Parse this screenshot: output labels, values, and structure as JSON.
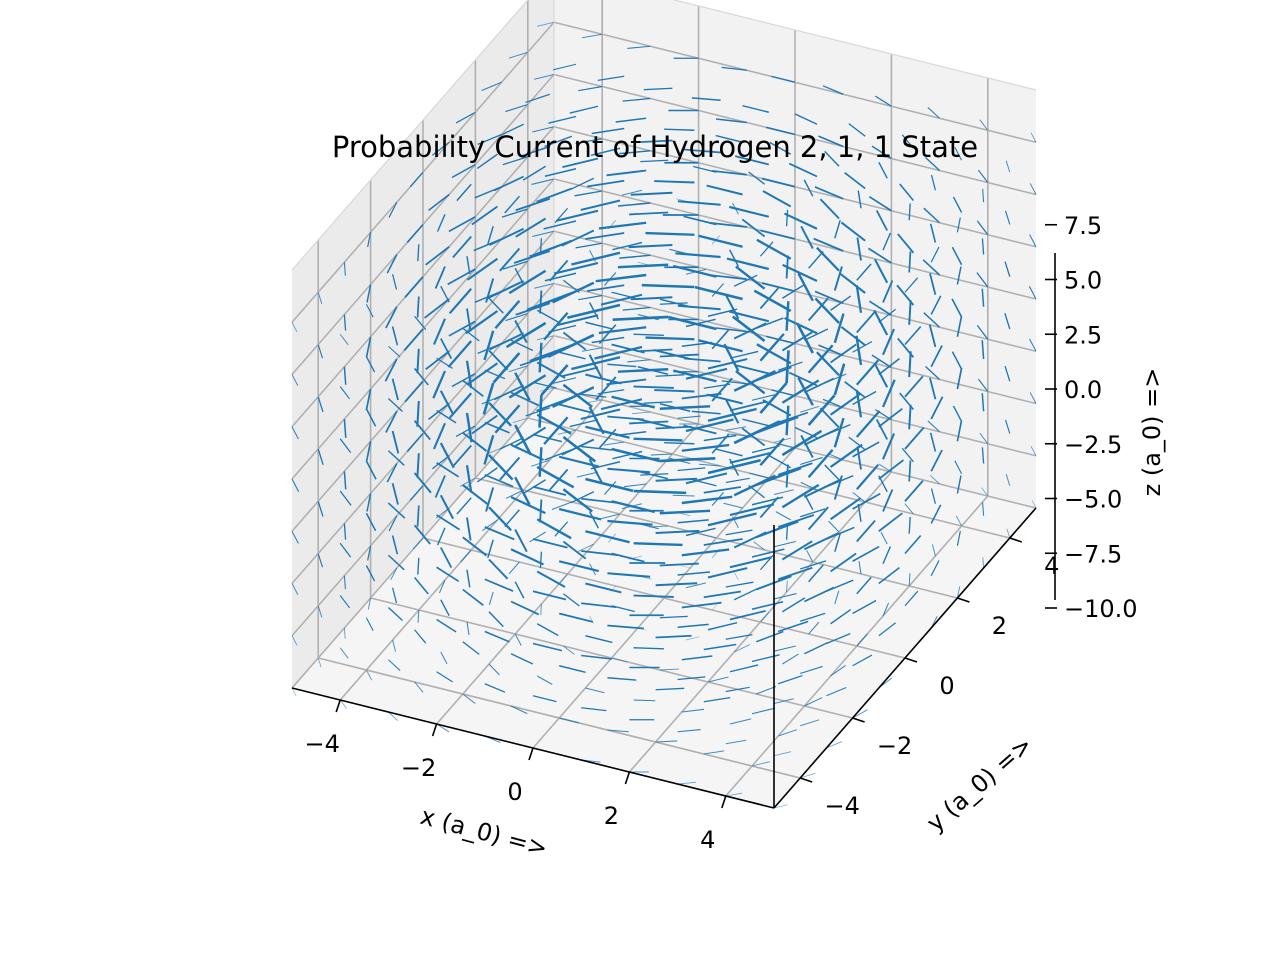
{
  "chart_data": {
    "type": "quiver3d",
    "title": "Probability Current of Hydrogen 2, 1, 1 State",
    "xlabel": "x (a_0) =>",
    "ylabel": "y (a_0) =>",
    "zlabel": "z (a_0) =>",
    "xlim": [
      -5,
      5
    ],
    "ylim": [
      -5,
      5
    ],
    "zlim": [
      -10,
      10
    ],
    "x_ticks": [
      "−4",
      "−2",
      "0",
      "2",
      "4"
    ],
    "y_ticks": [
      "−4",
      "−2",
      "0",
      "2",
      "4"
    ],
    "z_ticks": [
      "−10.0",
      "−7.5",
      "−5.0",
      "−2.5",
      "0.0",
      "2.5",
      "5.0",
      "7.5"
    ],
    "x_tick_values": [
      -4,
      -2,
      0,
      2,
      4
    ],
    "y_tick_values": [
      -4,
      -2,
      0,
      2,
      4
    ],
    "z_tick_values": [
      -10,
      -7.5,
      -5,
      -2.5,
      0,
      2.5,
      5,
      7.5
    ],
    "vector_field": {
      "description": "azimuthal circulation about z axis, strongest near origin",
      "grid_x": [
        -5,
        -4,
        -3,
        -2,
        -1,
        0,
        1,
        2,
        3,
        4,
        5
      ],
      "grid_y": [
        -5,
        -4,
        -3,
        -2,
        -1,
        0,
        1,
        2,
        3,
        4,
        5
      ],
      "grid_z": [
        -10,
        -7.5,
        -5,
        -2.5,
        0,
        2.5,
        5,
        7.5
      ]
    },
    "grid": true,
    "color": "#1f77b4"
  }
}
